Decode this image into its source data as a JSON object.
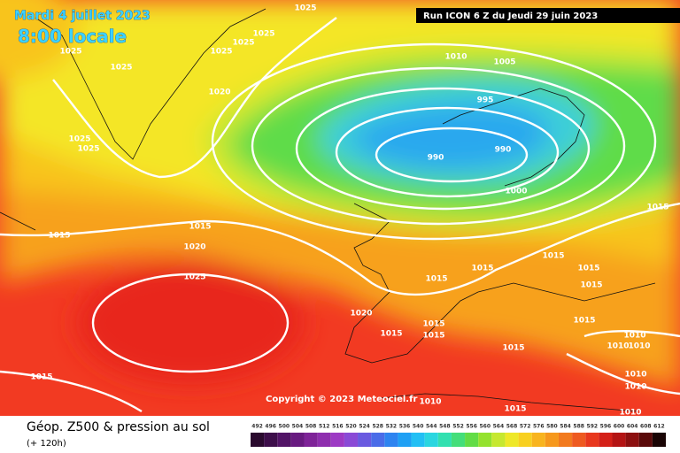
{
  "header": {
    "date": "Mardi 4 juillet 2023",
    "time": "8:00 locale",
    "run": "Run ICON 6 Z du Jeudi 29 juin 2023"
  },
  "copyright": "Copyright © 2023 Meteociel.fr",
  "legend": {
    "title": "Géop. Z500 & pression au sol",
    "subtitle": "(+ 120h)",
    "scale": [
      492,
      496,
      500,
      504,
      508,
      512,
      516,
      520,
      524,
      528,
      532,
      536,
      540,
      544,
      548,
      552,
      556,
      560,
      564,
      568,
      572,
      576,
      580,
      584,
      588,
      592,
      596,
      600,
      604,
      608,
      612
    ]
  },
  "isobar_labels": [
    1025,
    1025,
    1025,
    1025,
    1025,
    1025,
    1020,
    1025,
    1025,
    1010,
    1005,
    995,
    990,
    990,
    1000,
    1015,
    1015,
    1015,
    1020,
    1025,
    1015,
    1015,
    1015,
    1015,
    1015,
    1020,
    1015,
    1015,
    1015,
    1015,
    1010,
    1010,
    1010,
    1015,
    1010,
    1010,
    1015,
    1010,
    1015,
    1010
  ]
}
